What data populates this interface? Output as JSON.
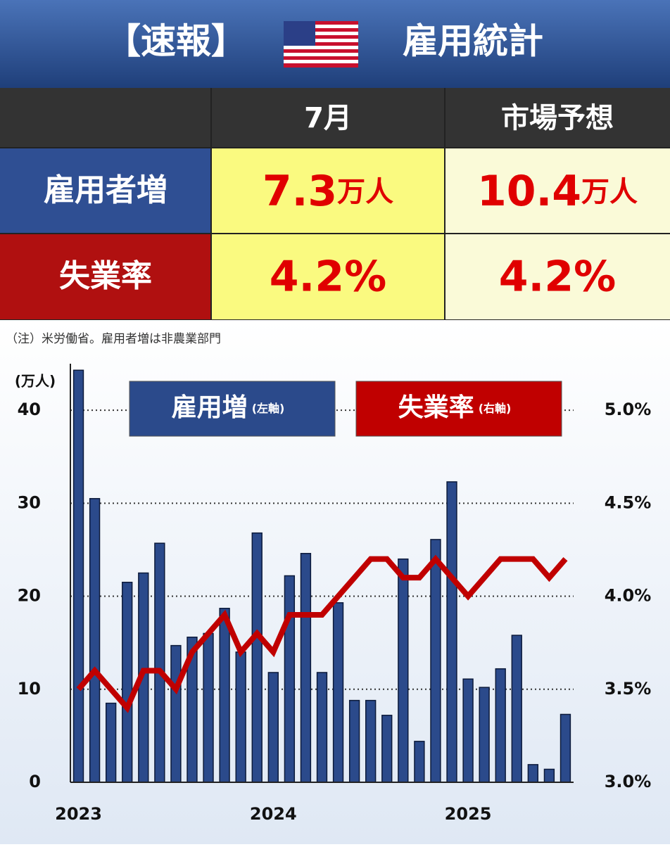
{
  "header": {
    "title_left": "【速報】",
    "title_right": "雇用統計"
  },
  "table": {
    "columns": [
      "7月",
      "市場予想"
    ],
    "rows": [
      {
        "label": "雇用者増",
        "cells": [
          "7.3",
          "10.4"
        ],
        "unit": "万人"
      },
      {
        "label": "失業率",
        "cells": [
          "4.2%",
          "4.2%"
        ]
      }
    ]
  },
  "note": "（注）米労働省。雇用者増は非農業部門",
  "chart_data": {
    "type": "bar",
    "y_label": "(万人)",
    "categories": [
      "2023",
      null,
      null,
      null,
      null,
      null,
      null,
      null,
      null,
      null,
      null,
      null,
      "2024",
      null,
      null,
      null,
      null,
      null,
      null,
      null,
      null,
      null,
      null,
      null,
      "2025",
      null,
      null,
      null,
      null,
      null,
      null
    ],
    "series": [
      {
        "name": "雇用増",
        "axis_note": "(左軸)",
        "type": "bar",
        "color": "#2b4a8b",
        "values": [
          44.3,
          30.5,
          8.5,
          21.5,
          22.5,
          25.7,
          14.7,
          15.6,
          16.0,
          18.7,
          14.0,
          26.8,
          11.8,
          22.2,
          24.6,
          11.8,
          19.3,
          8.8,
          8.8,
          7.2,
          24.0,
          4.4,
          26.1,
          32.3,
          11.1,
          10.2,
          12.2,
          15.8,
          1.9,
          1.4,
          7.3
        ]
      },
      {
        "name": "失業率",
        "axis_note": "(右軸)",
        "type": "line",
        "axis": "y2",
        "color": "#c00000",
        "values": [
          3.5,
          3.6,
          3.5,
          3.4,
          3.6,
          3.6,
          3.5,
          3.7,
          3.8,
          3.9,
          3.7,
          3.8,
          3.7,
          3.9,
          3.9,
          3.9,
          4.0,
          4.1,
          4.2,
          4.2,
          4.1,
          4.1,
          4.2,
          4.1,
          4.0,
          4.1,
          4.2,
          4.2,
          4.2,
          4.1,
          4.2
        ]
      }
    ],
    "ylim": [
      0,
      45
    ],
    "yticks": [
      0,
      10,
      20,
      30,
      40
    ],
    "y2lim": [
      3.0,
      5.25
    ],
    "y2ticks": [
      {
        "value": 3.0,
        "label": "3.0%"
      },
      {
        "value": 3.5,
        "label": "3.5%"
      },
      {
        "value": 4.0,
        "label": "4.0%"
      },
      {
        "value": 4.5,
        "label": "4.5%"
      },
      {
        "value": 5.0,
        "label": "5.0%"
      }
    ],
    "grid": true
  }
}
